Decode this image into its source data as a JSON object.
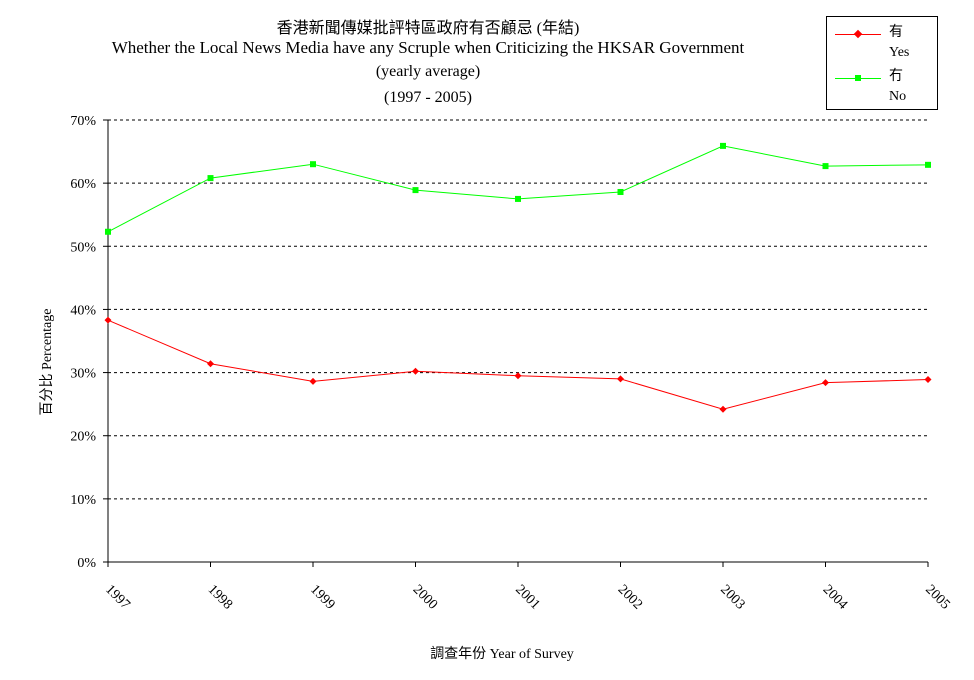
{
  "chart_data": {
    "type": "line",
    "title_zh": "香港新聞傳媒批評特區政府有否顧忌 (年結)",
    "title_en": "Whether the Local News Media have any Scruple when Criticizing the HKSAR Government",
    "subtitle_1": "(yearly average)",
    "subtitle_2": "(1997 - 2005)",
    "xlabel": "調查年份 Year of Survey",
    "ylabel": "百分比 Percentage",
    "categories": [
      "1997",
      "1998",
      "1999",
      "2000",
      "2001",
      "2002",
      "2003",
      "2004",
      "2005"
    ],
    "y_ticks": [
      "0%",
      "10%",
      "20%",
      "30%",
      "40%",
      "50%",
      "60%",
      "70%"
    ],
    "ylim": [
      0,
      70
    ],
    "grid": "horizontal dashed",
    "legend_position": "top-right",
    "series": [
      {
        "name_zh": "有",
        "name_en": "Yes",
        "color": "#ff0000",
        "marker": "diamond",
        "values": [
          38.3,
          31.4,
          28.6,
          30.2,
          29.5,
          29.0,
          24.2,
          28.4,
          28.9
        ]
      },
      {
        "name_zh": "冇",
        "name_en": "No",
        "color": "#00ff00",
        "marker": "square",
        "values": [
          52.3,
          60.8,
          63.0,
          58.9,
          57.5,
          58.6,
          65.9,
          62.7,
          62.9
        ]
      }
    ]
  }
}
